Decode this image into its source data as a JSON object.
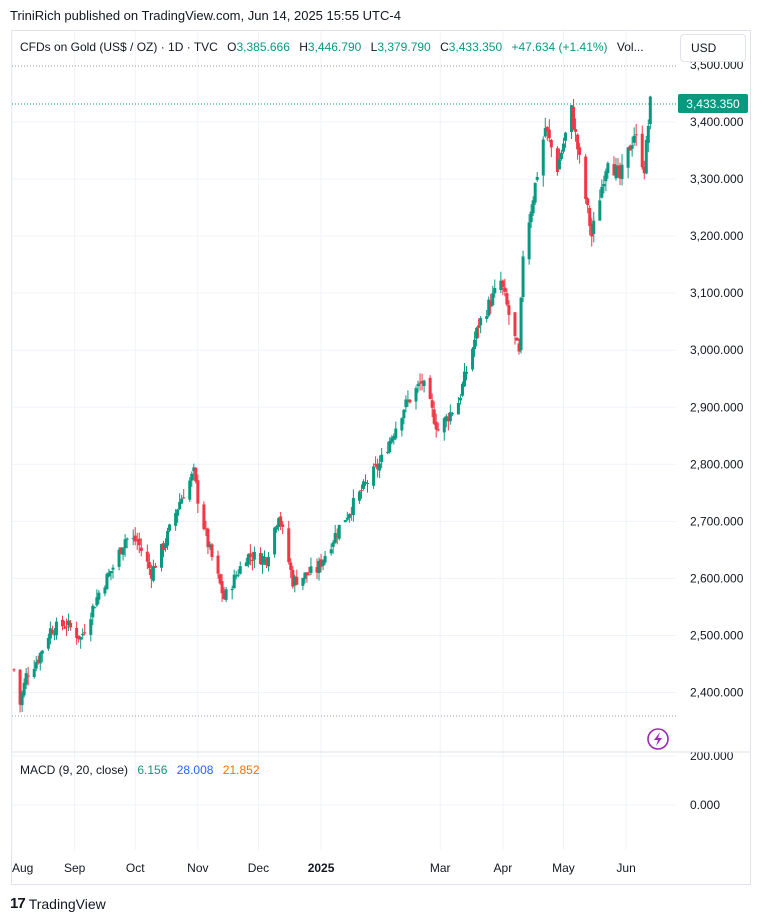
{
  "header": {
    "publisher_line": "TriniRich published on TradingView.com, Jun 14, 2025 15:55 UTC-4"
  },
  "legend": {
    "symbol": "CFDs on Gold (US$ / OZ) · 1D · TVC",
    "o_label": "O",
    "o_value": "3,385.666",
    "h_label": "H",
    "h_value": "3,446.790",
    "l_label": "L",
    "l_value": "3,379.790",
    "c_label": "C",
    "c_value": "3,433.350",
    "change": "+47.634 (+1.41%)",
    "vol": "Vol..."
  },
  "currency_button": {
    "label": "USD"
  },
  "macd": {
    "label": "MACD (9, 20, close)",
    "v0": "6.156",
    "v1": "28.008",
    "v2": "21.852"
  },
  "footer": {
    "logo": "17",
    "brand": "TradingView"
  },
  "colors": {
    "up": "#089981",
    "down": "#f23645",
    "grid": "#f0f3fa",
    "badge": "#089981",
    "lightning": "#9c27b0"
  },
  "chart_data": {
    "type": "candlestick",
    "price_axis_ticks": [
      "3,400.000",
      "3,300.000",
      "3,200.000",
      "3,100.000",
      "3,000.000",
      "2,900.000",
      "2,800.000",
      "2,700.000",
      "2,600.000",
      "2,500.000",
      "2,400.000"
    ],
    "price_axis_top_partial": "3,500.000",
    "macd_axis_ticks": [
      "200.000",
      "0.000"
    ],
    "last_price_badge": "3,433.350",
    "x_ticks": [
      "Aug",
      "Sep",
      "Oct",
      "Nov",
      "Dec",
      "2025",
      "Mar",
      "Apr",
      "May",
      "Jun"
    ],
    "ylim": [
      2350,
      3500
    ],
    "anchors": [
      {
        "x": "Aug 2",
        "y": 2440
      },
      {
        "x": "Aug 5",
        "y": 2380
      },
      {
        "x": "Aug 8",
        "y": 2430
      },
      {
        "x": "Aug 14",
        "y": 2460
      },
      {
        "x": "Aug 20",
        "y": 2510
      },
      {
        "x": "Aug 28",
        "y": 2520
      },
      {
        "x": "Sep 4",
        "y": 2495
      },
      {
        "x": "Sep 13",
        "y": 2575
      },
      {
        "x": "Sep 20",
        "y": 2620
      },
      {
        "x": "Sep 26",
        "y": 2670
      },
      {
        "x": "Oct 2",
        "y": 2665
      },
      {
        "x": "Oct 9",
        "y": 2610
      },
      {
        "x": "Oct 16",
        "y": 2665
      },
      {
        "x": "Oct 23",
        "y": 2735
      },
      {
        "x": "Oct 30",
        "y": 2785
      },
      {
        "x": "Nov 1",
        "y": 2740
      },
      {
        "x": "Nov 6",
        "y": 2660
      },
      {
        "x": "Nov 14",
        "y": 2565
      },
      {
        "x": "Nov 25",
        "y": 2640
      },
      {
        "x": "Dec 5",
        "y": 2635
      },
      {
        "x": "Dec 11",
        "y": 2715
      },
      {
        "x": "Dec 18",
        "y": 2595
      },
      {
        "x": "Dec 30",
        "y": 2615
      },
      {
        "x": "Jan 10",
        "y": 2690
      },
      {
        "x": "Jan 24",
        "y": 2770
      },
      {
        "x": "Jan 30",
        "y": 2800
      },
      {
        "x": "Feb 11",
        "y": 2900
      },
      {
        "x": "Feb 20",
        "y": 2945
      },
      {
        "x": "Feb 28",
        "y": 2860
      },
      {
        "x": "Mar 10",
        "y": 2910
      },
      {
        "x": "Mar 20",
        "y": 3045
      },
      {
        "x": "Mar 31",
        "y": 3120
      },
      {
        "x": "Apr 9",
        "y": 2990
      },
      {
        "x": "Apr 11",
        "y": 3170
      },
      {
        "x": "Apr 22",
        "y": 3390
      },
      {
        "x": "Apr 28",
        "y": 3320
      },
      {
        "x": "May 5",
        "y": 3420
      },
      {
        "x": "May 15",
        "y": 3200
      },
      {
        "x": "May 23",
        "y": 3340
      },
      {
        "x": "May 29",
        "y": 3300
      },
      {
        "x": "Jun 5",
        "y": 3380
      },
      {
        "x": "Jun 10",
        "y": 3320
      },
      {
        "x": "Jun 13",
        "y": 3433
      }
    ]
  }
}
